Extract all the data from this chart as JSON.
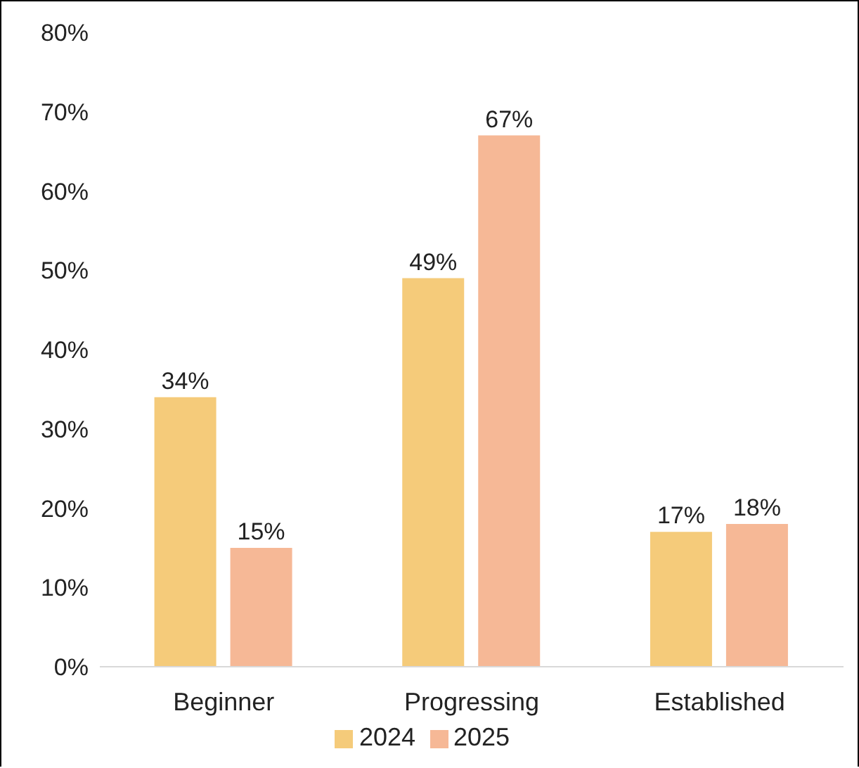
{
  "chart_data": {
    "type": "bar",
    "categories": [
      "Beginner",
      "Progressing",
      "Established"
    ],
    "series": [
      {
        "name": "2024",
        "color": "#f5cb7a",
        "values": [
          34,
          49,
          17
        ],
        "value_labels": [
          "34%",
          "49%",
          "17%"
        ]
      },
      {
        "name": "2025",
        "color": "#f6b896",
        "values": [
          15,
          67,
          18
        ],
        "value_labels": [
          "15%",
          "67%",
          "18%"
        ]
      }
    ],
    "ylim": [
      0,
      80
    ],
    "yticks": [
      {
        "value": 0,
        "label": "0%"
      },
      {
        "value": 10,
        "label": "10%"
      },
      {
        "value": 20,
        "label": "20%"
      },
      {
        "value": 30,
        "label": "30%"
      },
      {
        "value": 40,
        "label": "40%"
      },
      {
        "value": 50,
        "label": "50%"
      },
      {
        "value": 60,
        "label": "60%"
      },
      {
        "value": 70,
        "label": "70%"
      },
      {
        "value": 80,
        "label": "80%"
      }
    ],
    "grid": false,
    "legend": "bottom"
  }
}
